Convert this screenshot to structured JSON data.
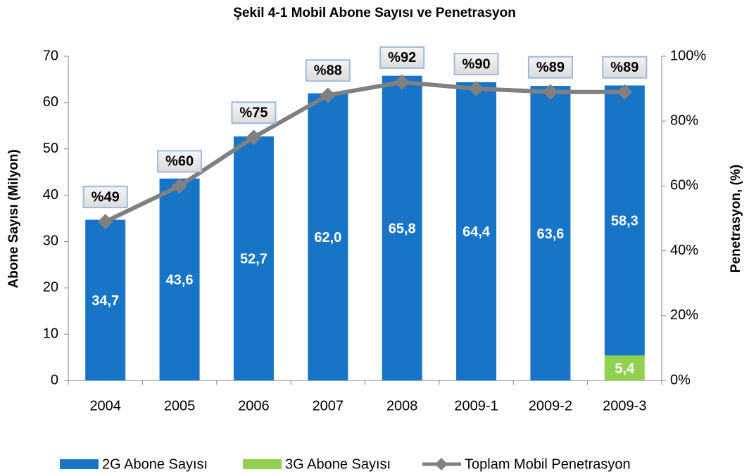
{
  "chart_data": {
    "type": "bar",
    "stacked": true,
    "title": "Şekil 4-1 Mobil Abone Sayısı ve Penetrasyon",
    "ylabel": "Abone Sayısı (Milyon)",
    "y2label": "Penetrasyon, (%)",
    "categories": [
      "2004",
      "2005",
      "2006",
      "2007",
      "2008",
      "2009-1",
      "2009-2",
      "2009-3"
    ],
    "series": [
      {
        "name": "2G Abone Sayısı",
        "type": "bar",
        "color": "#1874c6",
        "values": [
          34.7,
          43.6,
          52.7,
          62.0,
          65.8,
          64.4,
          63.6,
          58.3
        ],
        "value_labels": [
          "34,7",
          "43,6",
          "52,7",
          "62,0",
          "65,8",
          "64,4",
          "63,6",
          "58,3"
        ]
      },
      {
        "name": "3G Abone Sayısı",
        "type": "bar",
        "color": "#92d050",
        "values": [
          null,
          null,
          null,
          null,
          null,
          null,
          null,
          5.4
        ],
        "value_labels": [
          null,
          null,
          null,
          null,
          null,
          null,
          null,
          "5,4"
        ]
      },
      {
        "name": "Toplam Mobil Penetrasyon",
        "type": "line",
        "axis": "y2",
        "color": "#808080",
        "values": [
          49,
          60,
          75,
          88,
          92,
          90,
          89,
          89
        ],
        "value_labels": [
          "%49",
          "%60",
          "%75",
          "%88",
          "%92",
          "%90",
          "%89",
          "%89"
        ]
      }
    ],
    "ylim": [
      0,
      70
    ],
    "yticks": [
      0,
      10,
      20,
      30,
      40,
      50,
      60,
      70
    ],
    "y2lim": [
      0,
      100
    ],
    "y2ticks": [
      {
        "value": 0,
        "label": "0%"
      },
      {
        "value": 20,
        "label": "20%"
      },
      {
        "value": 40,
        "label": "40%"
      },
      {
        "value": 60,
        "label": "60%"
      },
      {
        "value": 80,
        "label": "80%"
      },
      {
        "value": 100,
        "label": "100%"
      }
    ],
    "legend": "bottom",
    "grid": false
  }
}
